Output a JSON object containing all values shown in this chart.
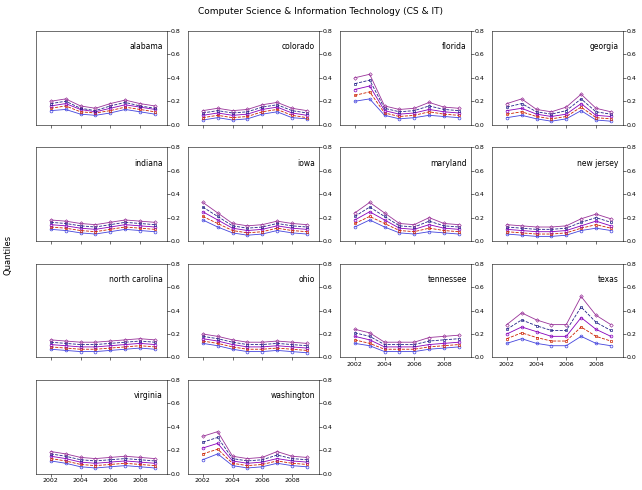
{
  "states": [
    "alabama",
    "colorado",
    "florida",
    "georgia",
    "indiana",
    "iowa",
    "maryland",
    "new jersey",
    "north carolina",
    "ohio",
    "tennessee",
    "texas",
    "virginia",
    "washington"
  ],
  "years": [
    2002,
    2003,
    2004,
    2005,
    2006,
    2007,
    2008,
    2009
  ],
  "ylim": [
    0.0,
    0.8
  ],
  "yticks": [
    0.0,
    0.2,
    0.4,
    0.6,
    0.8
  ],
  "xticks": [
    2002,
    2004,
    2006,
    2008
  ],
  "fig_title": "Computer Science & Information Technology (CS & IT)",
  "ylabel": "Quantiles",
  "data": {
    "alabama": [
      [
        0.12,
        0.13,
        0.09,
        0.08,
        0.1,
        0.13,
        0.11,
        0.09
      ],
      [
        0.14,
        0.16,
        0.11,
        0.1,
        0.12,
        0.15,
        0.13,
        0.11
      ],
      [
        0.16,
        0.18,
        0.13,
        0.11,
        0.14,
        0.17,
        0.15,
        0.13
      ],
      [
        0.18,
        0.2,
        0.14,
        0.12,
        0.16,
        0.19,
        0.16,
        0.14
      ],
      [
        0.2,
        0.22,
        0.16,
        0.14,
        0.18,
        0.21,
        0.18,
        0.16
      ]
    ],
    "colorado": [
      [
        0.04,
        0.06,
        0.04,
        0.05,
        0.09,
        0.11,
        0.06,
        0.05
      ],
      [
        0.06,
        0.08,
        0.06,
        0.07,
        0.11,
        0.13,
        0.08,
        0.06
      ],
      [
        0.08,
        0.1,
        0.08,
        0.09,
        0.13,
        0.15,
        0.1,
        0.08
      ],
      [
        0.1,
        0.12,
        0.1,
        0.11,
        0.15,
        0.17,
        0.12,
        0.1
      ],
      [
        0.12,
        0.14,
        0.12,
        0.13,
        0.17,
        0.19,
        0.14,
        0.12
      ]
    ],
    "florida": [
      [
        0.2,
        0.22,
        0.08,
        0.05,
        0.06,
        0.08,
        0.07,
        0.06
      ],
      [
        0.25,
        0.28,
        0.1,
        0.07,
        0.08,
        0.11,
        0.09,
        0.08
      ],
      [
        0.3,
        0.33,
        0.12,
        0.09,
        0.1,
        0.13,
        0.11,
        0.1
      ],
      [
        0.35,
        0.38,
        0.14,
        0.11,
        0.12,
        0.16,
        0.13,
        0.12
      ],
      [
        0.4,
        0.43,
        0.16,
        0.13,
        0.14,
        0.19,
        0.15,
        0.14
      ]
    ],
    "georgia": [
      [
        0.06,
        0.08,
        0.05,
        0.03,
        0.05,
        0.12,
        0.04,
        0.03
      ],
      [
        0.09,
        0.11,
        0.07,
        0.05,
        0.07,
        0.15,
        0.06,
        0.05
      ],
      [
        0.12,
        0.14,
        0.09,
        0.07,
        0.09,
        0.18,
        0.08,
        0.07
      ],
      [
        0.15,
        0.18,
        0.11,
        0.09,
        0.12,
        0.22,
        0.11,
        0.09
      ],
      [
        0.18,
        0.22,
        0.13,
        0.11,
        0.15,
        0.26,
        0.14,
        0.11
      ]
    ],
    "indiana": [
      [
        0.1,
        0.09,
        0.07,
        0.06,
        0.08,
        0.1,
        0.09,
        0.08
      ],
      [
        0.12,
        0.11,
        0.09,
        0.08,
        0.1,
        0.12,
        0.11,
        0.1
      ],
      [
        0.14,
        0.13,
        0.11,
        0.1,
        0.12,
        0.14,
        0.13,
        0.12
      ],
      [
        0.16,
        0.15,
        0.13,
        0.12,
        0.14,
        0.16,
        0.15,
        0.14
      ],
      [
        0.18,
        0.17,
        0.15,
        0.14,
        0.16,
        0.18,
        0.17,
        0.16
      ]
    ],
    "iowa": [
      [
        0.18,
        0.12,
        0.07,
        0.05,
        0.06,
        0.09,
        0.07,
        0.06
      ],
      [
        0.21,
        0.15,
        0.09,
        0.07,
        0.08,
        0.11,
        0.09,
        0.08
      ],
      [
        0.25,
        0.18,
        0.11,
        0.09,
        0.1,
        0.13,
        0.11,
        0.1
      ],
      [
        0.29,
        0.21,
        0.13,
        0.11,
        0.12,
        0.15,
        0.13,
        0.12
      ],
      [
        0.33,
        0.24,
        0.15,
        0.13,
        0.14,
        0.17,
        0.15,
        0.14
      ]
    ],
    "maryland": [
      [
        0.12,
        0.18,
        0.12,
        0.07,
        0.06,
        0.08,
        0.07,
        0.06
      ],
      [
        0.15,
        0.21,
        0.15,
        0.09,
        0.08,
        0.11,
        0.09,
        0.08
      ],
      [
        0.18,
        0.25,
        0.18,
        0.11,
        0.1,
        0.14,
        0.11,
        0.1
      ],
      [
        0.21,
        0.29,
        0.21,
        0.13,
        0.12,
        0.17,
        0.13,
        0.12
      ],
      [
        0.24,
        0.33,
        0.24,
        0.15,
        0.14,
        0.2,
        0.15,
        0.14
      ]
    ],
    "new jersey": [
      [
        0.06,
        0.05,
        0.04,
        0.04,
        0.05,
        0.09,
        0.11,
        0.09
      ],
      [
        0.08,
        0.07,
        0.06,
        0.06,
        0.07,
        0.11,
        0.14,
        0.11
      ],
      [
        0.1,
        0.09,
        0.08,
        0.08,
        0.09,
        0.13,
        0.17,
        0.13
      ],
      [
        0.12,
        0.11,
        0.1,
        0.1,
        0.11,
        0.16,
        0.2,
        0.16
      ],
      [
        0.14,
        0.13,
        0.12,
        0.12,
        0.13,
        0.19,
        0.23,
        0.19
      ]
    ],
    "north carolina": [
      [
        0.07,
        0.06,
        0.05,
        0.05,
        0.06,
        0.07,
        0.08,
        0.07
      ],
      [
        0.09,
        0.08,
        0.07,
        0.07,
        0.08,
        0.09,
        0.1,
        0.09
      ],
      [
        0.11,
        0.1,
        0.09,
        0.09,
        0.1,
        0.11,
        0.12,
        0.11
      ],
      [
        0.13,
        0.12,
        0.11,
        0.11,
        0.12,
        0.13,
        0.14,
        0.13
      ],
      [
        0.15,
        0.14,
        0.13,
        0.13,
        0.14,
        0.15,
        0.16,
        0.15
      ]
    ],
    "ohio": [
      [
        0.12,
        0.1,
        0.07,
        0.05,
        0.05,
        0.06,
        0.05,
        0.04
      ],
      [
        0.14,
        0.12,
        0.09,
        0.07,
        0.07,
        0.08,
        0.07,
        0.06
      ],
      [
        0.16,
        0.14,
        0.11,
        0.09,
        0.09,
        0.1,
        0.09,
        0.08
      ],
      [
        0.18,
        0.16,
        0.13,
        0.11,
        0.11,
        0.12,
        0.11,
        0.1
      ],
      [
        0.2,
        0.18,
        0.15,
        0.13,
        0.13,
        0.14,
        0.13,
        0.12
      ]
    ],
    "tennessee": [
      [
        0.12,
        0.1,
        0.05,
        0.05,
        0.05,
        0.07,
        0.08,
        0.09
      ],
      [
        0.15,
        0.12,
        0.07,
        0.07,
        0.07,
        0.09,
        0.1,
        0.11
      ],
      [
        0.18,
        0.15,
        0.09,
        0.09,
        0.09,
        0.11,
        0.12,
        0.13
      ],
      [
        0.21,
        0.18,
        0.11,
        0.11,
        0.11,
        0.14,
        0.15,
        0.16
      ],
      [
        0.24,
        0.21,
        0.13,
        0.13,
        0.13,
        0.17,
        0.18,
        0.19
      ]
    ],
    "texas": [
      [
        0.12,
        0.16,
        0.12,
        0.1,
        0.1,
        0.18,
        0.12,
        0.1
      ],
      [
        0.16,
        0.21,
        0.17,
        0.14,
        0.14,
        0.26,
        0.18,
        0.14
      ],
      [
        0.2,
        0.26,
        0.22,
        0.18,
        0.18,
        0.34,
        0.24,
        0.18
      ],
      [
        0.24,
        0.32,
        0.27,
        0.23,
        0.23,
        0.43,
        0.3,
        0.23
      ],
      [
        0.28,
        0.38,
        0.32,
        0.28,
        0.28,
        0.52,
        0.36,
        0.28
      ]
    ],
    "virginia": [
      [
        0.11,
        0.09,
        0.06,
        0.05,
        0.06,
        0.07,
        0.06,
        0.05
      ],
      [
        0.13,
        0.11,
        0.08,
        0.07,
        0.08,
        0.09,
        0.08,
        0.07
      ],
      [
        0.15,
        0.13,
        0.1,
        0.09,
        0.1,
        0.11,
        0.1,
        0.09
      ],
      [
        0.17,
        0.15,
        0.12,
        0.11,
        0.12,
        0.13,
        0.12,
        0.11
      ],
      [
        0.19,
        0.17,
        0.14,
        0.13,
        0.14,
        0.15,
        0.14,
        0.13
      ]
    ],
    "washington": [
      [
        0.12,
        0.17,
        0.07,
        0.05,
        0.06,
        0.09,
        0.07,
        0.06
      ],
      [
        0.17,
        0.21,
        0.09,
        0.07,
        0.08,
        0.11,
        0.09,
        0.08
      ],
      [
        0.22,
        0.26,
        0.11,
        0.09,
        0.1,
        0.13,
        0.11,
        0.1
      ],
      [
        0.27,
        0.31,
        0.13,
        0.11,
        0.12,
        0.16,
        0.13,
        0.12
      ],
      [
        0.32,
        0.36,
        0.15,
        0.13,
        0.14,
        0.19,
        0.15,
        0.14
      ]
    ]
  }
}
